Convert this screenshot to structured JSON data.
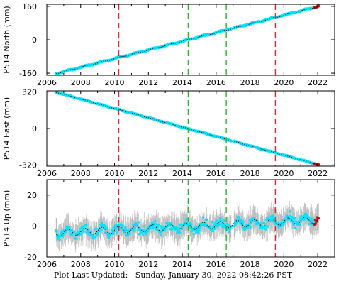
{
  "footer_text": "Plot Last Updated:   Sunday, January 30, 2022 08:42:26 PST",
  "colors": {
    "data": "#00e5ff",
    "errorbar": "#b4b4b4",
    "model": "#000000",
    "red_line": "#e8282a",
    "green_line": "#1dbf1d",
    "recent": "#d01010"
  },
  "chart_data": [
    {
      "type": "scatter",
      "ylabel": "P514 North (mm)",
      "xlim": [
        2006,
        2023
      ],
      "ylim": [
        -170,
        170
      ],
      "yticks": [
        160,
        0,
        -160
      ],
      "xticks": [
        2006,
        2008,
        2010,
        2012,
        2014,
        2016,
        2018,
        2020,
        2022
      ],
      "xtick_labels_shown": true,
      "trend": {
        "x": [
          2006.55,
          2022.05
        ],
        "y": [
          -162,
          160
        ]
      },
      "seasonal_amplitude": 2,
      "noise": 2,
      "error": 2,
      "red_lines": [
        2010.25,
        2019.5
      ],
      "green_lines": [
        2014.35,
        2016.6
      ],
      "grid": false,
      "legend": "none"
    },
    {
      "type": "scatter",
      "ylabel": "P514 East (mm)",
      "xlim": [
        2006,
        2023
      ],
      "ylim": [
        -330,
        330
      ],
      "yticks": [
        320,
        0,
        -320
      ],
      "xticks": [
        2006,
        2008,
        2010,
        2012,
        2014,
        2016,
        2018,
        2020,
        2022
      ],
      "xtick_labels_shown": true,
      "trend": {
        "x": [
          2006.55,
          2022.05
        ],
        "y": [
          318,
          -318
        ]
      },
      "seasonal_amplitude": 2,
      "noise": 2,
      "error": 3,
      "red_lines": [
        2010.25,
        2019.5
      ],
      "green_lines": [
        2014.35,
        2016.6
      ],
      "grid": false,
      "legend": "none"
    },
    {
      "type": "scatter",
      "ylabel": "P514 Up (mm)",
      "xlim": [
        2006,
        2023
      ],
      "ylim": [
        -20,
        30
      ],
      "yticks": [
        20,
        0,
        -20
      ],
      "xticks": [
        2006,
        2008,
        2010,
        2012,
        2014,
        2016,
        2018,
        2020,
        2022
      ],
      "xtick_labels_shown": true,
      "trend": {
        "x": [
          2006.55,
          2022.05
        ],
        "y": [
          -4.5,
          4
        ]
      },
      "seasonal_amplitude": 2.2,
      "noise": 3,
      "error": 7,
      "red_lines": [
        2010.25,
        2019.5
      ],
      "green_lines": [
        2014.35,
        2016.6
      ],
      "grid": false,
      "legend": "none"
    }
  ]
}
